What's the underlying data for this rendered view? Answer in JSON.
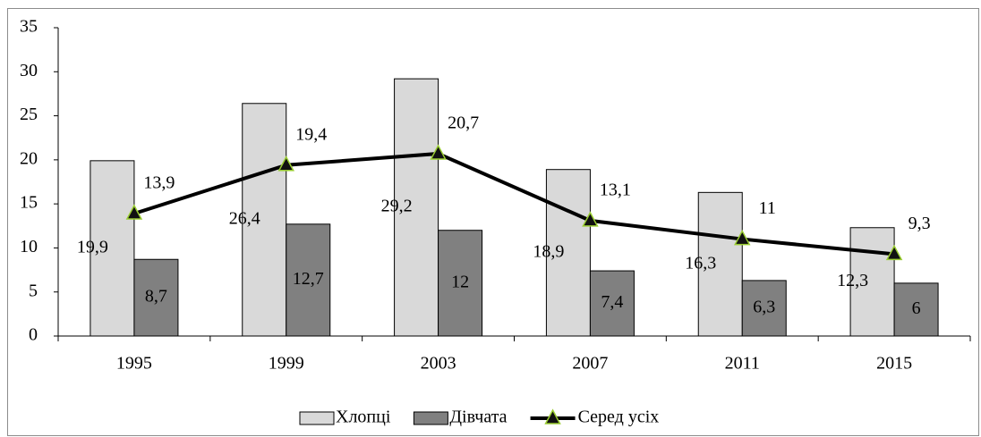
{
  "chart_data": {
    "type": "bar",
    "categories": [
      "1995",
      "1999",
      "2003",
      "2007",
      "2011",
      "2015"
    ],
    "series": [
      {
        "name": "Хлопці",
        "color": "#d9d9d9",
        "values": [
          19.9,
          26.4,
          29.2,
          18.9,
          16.3,
          12.3
        ],
        "value_labels": [
          "19,9",
          "26,4",
          "29,2",
          "18,9",
          "16,3",
          "12,3"
        ]
      },
      {
        "name": "Дівчата",
        "color": "#808080",
        "values": [
          8.7,
          12.7,
          12,
          7.4,
          6.3,
          6
        ],
        "value_labels": [
          "8,7",
          "12,7",
          "12",
          "7,4",
          "6,3",
          "6"
        ]
      },
      {
        "name": "Серед усіх",
        "type": "line",
        "color": "#000000",
        "marker_color": "#9acd32",
        "values": [
          13.9,
          19.4,
          20.7,
          13.1,
          11,
          9.3
        ],
        "value_labels": [
          "13,9",
          "19,4",
          "20,7",
          "13,1",
          "11",
          "9,3"
        ]
      }
    ],
    "ylim": [
      0,
      35
    ],
    "yticks": [
      0,
      5,
      10,
      15,
      20,
      25,
      30,
      35
    ],
    "legend": "bottom"
  }
}
